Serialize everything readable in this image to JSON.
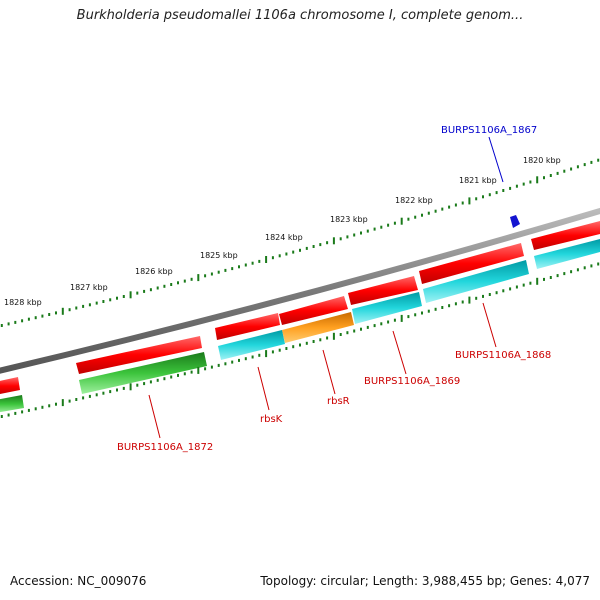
{
  "title": "Burkholderia pseudomallei 1106a chromosome I, complete genom...",
  "footer": {
    "accession": "Accession: NC_009076",
    "summary": "Topology: circular; Length: 3,988,455 bp; Genes: 4,077"
  },
  "ruler": {
    "labels": [
      "1820 kbp",
      "1821 kbp",
      "1822 kbp",
      "1823 kbp",
      "1824 kbp",
      "1825 kbp",
      "1826 kbp",
      "1827 kbp",
      "1828 kbp"
    ]
  },
  "genes": {
    "burps1106a_1867": "BURPS1106A_1867",
    "burps1106a_1868": "BURPS1106A_1868",
    "burps1106a_1869": "BURPS1106A_1869",
    "rbsr": "rbsR",
    "rbsk": "rbsK",
    "burps1106a_1872": "BURPS1106A_1872"
  },
  "colors": {
    "forward_cds": "#e8001c",
    "reverse_cds": "#18c8d0",
    "rbsr": "#ff9a10",
    "burps1106a_1872": "#3cc43c",
    "ruler": "#1a7a1a",
    "backbone": "#7f7f7f",
    "marker": "#1414d0",
    "label_red": "#cc0000",
    "label_blue": "#0000cc"
  }
}
